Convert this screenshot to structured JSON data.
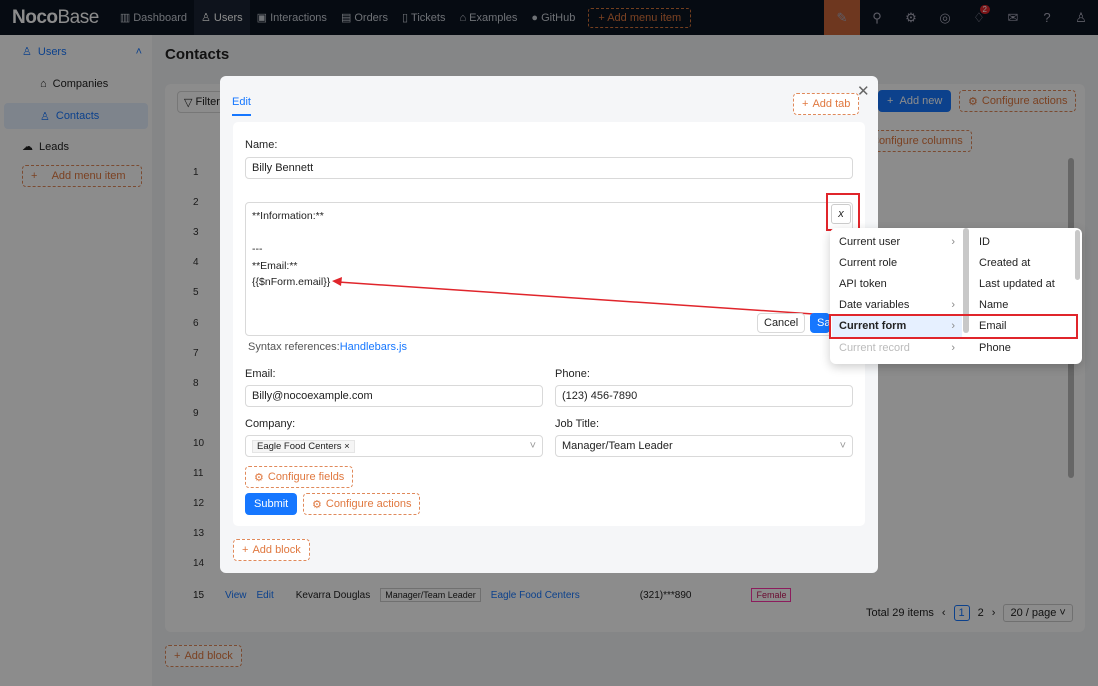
{
  "header": {
    "logo_bold": "Noco",
    "logo_light": "Base",
    "nav": [
      {
        "icon": "chart-icon",
        "label": "Dashboard"
      },
      {
        "icon": "users-icon",
        "label": "Users"
      },
      {
        "icon": "interactions-icon",
        "label": "Interactions"
      },
      {
        "icon": "orders-icon",
        "label": "Orders"
      },
      {
        "icon": "tickets-icon",
        "label": "Tickets"
      },
      {
        "icon": "bank-icon",
        "label": "Examples"
      },
      {
        "icon": "github-icon",
        "label": "GitHub"
      }
    ],
    "add_menu_item": "+ Add menu item",
    "notification_count": "2"
  },
  "sidebar": {
    "users": "Users",
    "companies": "Companies",
    "contacts": "Contacts",
    "leads": "Leads",
    "add_menu_item": "Add menu item"
  },
  "page": {
    "title": "Contacts",
    "filter": "Filter",
    "add_new": "Add new",
    "configure_actions": "Configure actions",
    "configure_columns": "Configure columns",
    "row_numbers": [
      "1",
      "2",
      "3",
      "4",
      "5",
      "6",
      "7",
      "8",
      "9",
      "10",
      "11",
      "12",
      "13",
      "14",
      "15"
    ],
    "row15": {
      "view": "View",
      "edit": "Edit",
      "name": "Kevarra Douglas",
      "title": "Manager/Team Leader",
      "company": "Eagle Food Centers",
      "phone": "(321)***890",
      "gender": "Female"
    },
    "pagination": {
      "total": "Total 29 items",
      "pages": [
        "1",
        "2"
      ],
      "page_size": "20 / page"
    },
    "add_block": "Add block"
  },
  "modal": {
    "tab": "Edit",
    "add_tab": "Add tab",
    "name_label": "Name",
    "name_value": "Billy Bennett",
    "markdown_lines": [
      "**Information:**",
      "",
      "---",
      "**Email:**",
      "{{$nForm.email}}"
    ],
    "variable_button": "x",
    "cancel": "Cancel",
    "save": "Save",
    "syntax_label": "Syntax references:",
    "syntax_link": "Handlebars.js",
    "email_label": "Email",
    "email_value": "Billy@nocoexample.com",
    "phone_label": "Phone",
    "phone_value": "(123) 456-7890",
    "company_label": "Company",
    "company_tag": "Eagle Food Centers",
    "job_label": "Job Title",
    "job_value": "Manager/Team Leader",
    "configure_fields": "Configure fields",
    "submit": "Submit",
    "configure_actions": "Configure actions",
    "add_block": "Add block"
  },
  "variable_menu": {
    "left": [
      {
        "label": "Current user",
        "submenu": true
      },
      {
        "label": "Current role",
        "submenu": false
      },
      {
        "label": "API token",
        "submenu": false
      },
      {
        "label": "Date variables",
        "submenu": true
      },
      {
        "label": "Current form",
        "submenu": true,
        "selected": true
      },
      {
        "label": "Current record",
        "submenu": true,
        "disabled": true
      }
    ],
    "right": [
      "ID",
      "Created at",
      "Last updated at",
      "Name",
      "Email",
      "Phone"
    ],
    "highlighted": "Email"
  },
  "colors": {
    "primary": "#1677ff",
    "accent": "#e0783f",
    "highlight": "#e0252b",
    "header_bg": "#0b1422"
  }
}
